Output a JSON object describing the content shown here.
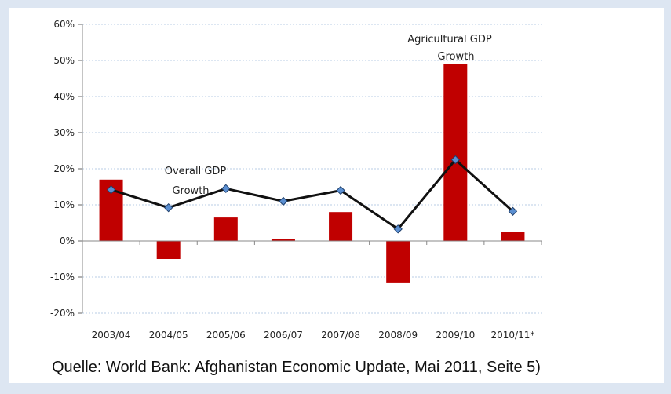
{
  "chart_data": {
    "type": "bar",
    "categories": [
      "2003/04",
      "2004/05",
      "2005/06",
      "2006/07",
      "2007/08",
      "2008/09",
      "2009/10",
      "2010/11*"
    ],
    "y_ticks": [
      "-20%",
      "-10%",
      "0%",
      "10%",
      "20%",
      "30%",
      "40%",
      "50%",
      "60%"
    ],
    "ylim": [
      -20,
      60
    ],
    "grid": true,
    "series": [
      {
        "type": "bar",
        "values": [
          17,
          -5,
          6.5,
          0.5,
          8,
          -11.5,
          49,
          2.5
        ]
      },
      {
        "type": "line",
        "values": [
          14.2,
          9.2,
          14.5,
          11,
          14,
          3.3,
          22.5,
          8.2
        ]
      }
    ],
    "annotations": {
      "bar_series": {
        "line1": "Agricultural GDP",
        "line2": "Growth"
      },
      "line_series": {
        "line1": "Overall GDP",
        "line2": "Growth"
      }
    },
    "colors": {
      "bar": "#c00000",
      "line": "#111111",
      "marker": "#5b8fd1",
      "grid": "#b9cde5"
    }
  },
  "caption": "Quelle: World Bank: Afghanistan Economic Update, Mai 2011, Seite 5)"
}
